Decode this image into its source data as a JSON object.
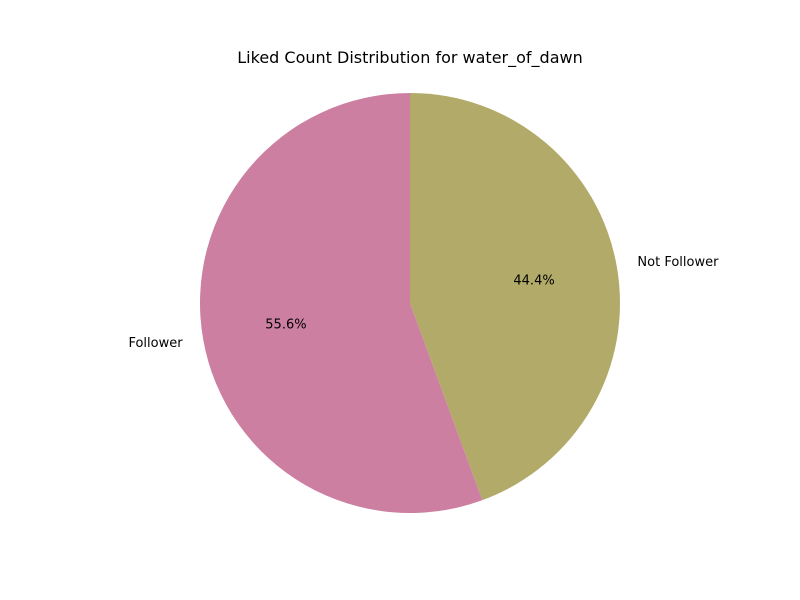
{
  "chart_data": {
    "type": "pie",
    "title": "Liked Count Distribution for water_of_dawn",
    "categories": [
      "Follower",
      "Not Follower"
    ],
    "values": [
      55.6,
      44.4
    ],
    "percent_labels": [
      "55.6%",
      "44.4%"
    ],
    "colors": [
      "#cc7fa0",
      "#b2aa68"
    ],
    "start_angle_deg": 90,
    "direction": "counterclockwise"
  }
}
